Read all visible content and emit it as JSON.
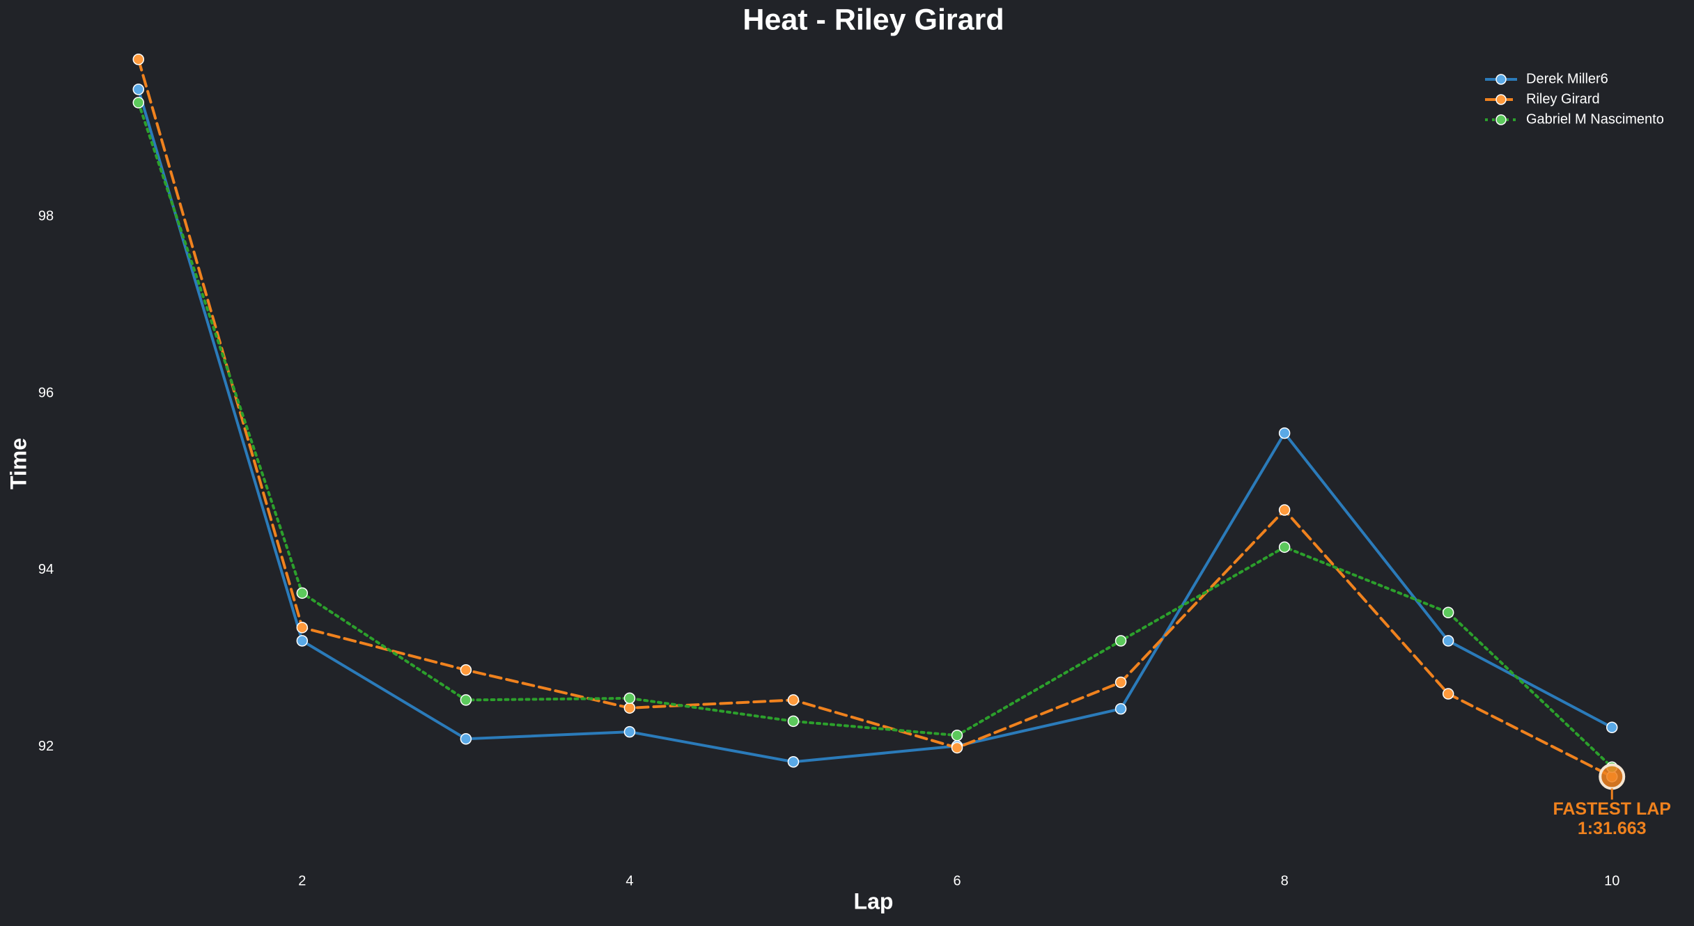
{
  "chart_data": {
    "type": "line",
    "title": "Heat - Riley Girard",
    "x_label": "Lap",
    "y_label": "Time",
    "x": [
      1,
      2,
      3,
      4,
      5,
      6,
      7,
      8,
      9,
      10
    ],
    "xlim": [
      0.55,
      10.45
    ],
    "xticks": [
      2,
      4,
      6,
      8,
      10
    ],
    "ylim": [
      90.8,
      99.9
    ],
    "yticks": [
      92,
      94,
      96,
      98
    ],
    "grid": false,
    "legend": "upper right",
    "series": [
      {
        "name": "Derek Miller6",
        "color": "#2b7bba",
        "marker_color": "#5aa9e6",
        "dash": "solid",
        "values": [
          99.44,
          93.2,
          92.09,
          92.17,
          91.83,
          92.01,
          92.43,
          95.55,
          93.2,
          92.22
        ]
      },
      {
        "name": "Riley Girard",
        "color": "#f0821e",
        "marker_color": "#ff9a3c",
        "dash": "dashed",
        "values": [
          99.78,
          93.35,
          92.87,
          92.44,
          92.53,
          91.99,
          92.73,
          94.68,
          92.6,
          91.663
        ]
      },
      {
        "name": "Gabriel M Nascimento",
        "color": "#2ca02c",
        "marker_color": "#5cc95c",
        "dash": "dotted",
        "values": [
          99.29,
          93.74,
          92.53,
          92.55,
          92.29,
          92.13,
          93.2,
          94.26,
          93.52,
          91.77
        ]
      }
    ],
    "annotation": {
      "lines": [
        "FASTEST LAP",
        "1:31.663"
      ],
      "color": "#f0821e"
    }
  }
}
